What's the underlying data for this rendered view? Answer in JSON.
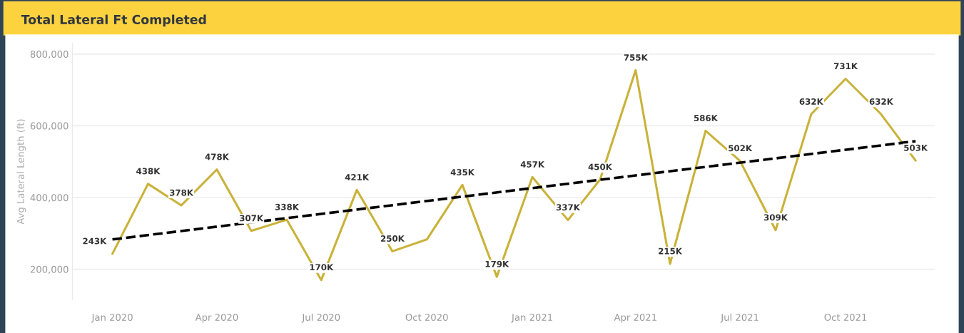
{
  "chart_data": {
    "type": "line",
    "title": "Total Lateral Ft Completed",
    "ylabel": "Avg Lateral Length (ft)",
    "x": [
      "2020-01",
      "2020-02",
      "2020-03",
      "2020-04",
      "2020-05",
      "2020-06",
      "2020-07",
      "2020-08",
      "2020-09",
      "2020-10",
      "2020-11",
      "2020-12",
      "2021-01",
      "2021-02",
      "2021-03",
      "2021-04",
      "2021-05",
      "2021-06",
      "2021-07",
      "2021-08",
      "2021-09",
      "2021-10",
      "2021-11",
      "2021-12"
    ],
    "series": [
      {
        "color": "#c9b23a",
        "values": [
          243000,
          438000,
          378000,
          478000,
          307000,
          338000,
          170000,
          421000,
          250000,
          283000,
          435000,
          179000,
          457000,
          337000,
          450000,
          755000,
          215000,
          586000,
          502000,
          309000,
          632000,
          731000,
          632000,
          503000
        ],
        "value_labels": [
          "243K",
          "438K",
          "378K",
          "478K",
          "307K",
          "338K",
          "170K",
          "421K",
          "250K",
          null,
          "435K",
          "179K",
          "457K",
          "337K",
          "450K",
          "755K",
          "215K",
          "586K",
          "502K",
          "309K",
          "632K",
          "731K",
          "632K",
          "503K"
        ]
      },
      {
        "type": "line",
        "color": "#000000",
        "line_style": "dashed",
        "x": [
          "2020-01",
          "2021-12"
        ],
        "values": [
          283000,
          557000
        ]
      }
    ],
    "xlim": [
      "2019-11-27",
      "2021-12-18"
    ],
    "xticks": [
      {
        "value": "2020-01",
        "label": "Jan 2020"
      },
      {
        "value": "2020-04",
        "label": "Apr 2020"
      },
      {
        "value": "2020-07",
        "label": "Jul 2020"
      },
      {
        "value": "2020-10",
        "label": "Oct 2020"
      },
      {
        "value": "2021-01",
        "label": "Jan 2021"
      },
      {
        "value": "2021-04",
        "label": "Apr 2021"
      },
      {
        "value": "2021-07",
        "label": "Jul 2021"
      },
      {
        "value": "2021-10",
        "label": "Oct 2021"
      }
    ],
    "ylim": [
      115000,
      830000
    ],
    "yticks": [
      {
        "value": 200000,
        "label": "200,000"
      },
      {
        "value": 400000,
        "label": "400,000"
      },
      {
        "value": 600000,
        "label": "600,000"
      },
      {
        "value": 800000,
        "label": "800,000"
      }
    ],
    "grid": "y",
    "legend": false,
    "marker": "none"
  }
}
